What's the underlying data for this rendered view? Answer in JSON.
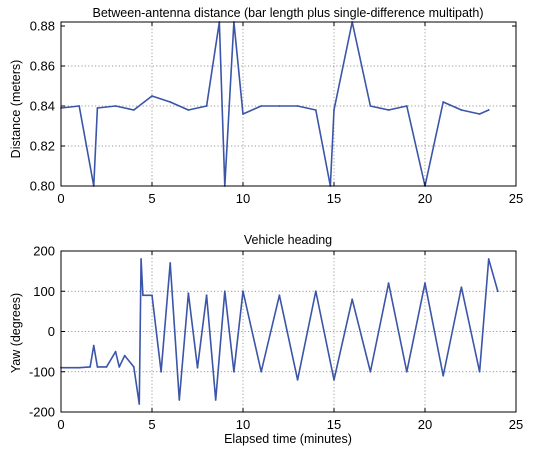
{
  "chart_data": [
    {
      "type": "line",
      "title": "Between-antenna distance (bar length plus single-difference multipath)",
      "xlabel": "",
      "ylabel": "Distance (meters)",
      "xlim": [
        0,
        25
      ],
      "ylim": [
        0.8,
        0.882
      ],
      "xticks": [
        "0",
        "5",
        "10",
        "15",
        "20",
        "25"
      ],
      "yticks": [
        "0.80",
        "0.82",
        "0.84",
        "0.86",
        "0.88"
      ],
      "grid": true,
      "line_color": "#3b55a8",
      "series": [
        {
          "name": "",
          "x": [
            0,
            1,
            1.8,
            2,
            3,
            4,
            5,
            6,
            7,
            8,
            8.7,
            9,
            9.5,
            10,
            11,
            12,
            13,
            14,
            14.8,
            15,
            16,
            17,
            18,
            19,
            20,
            21,
            22,
            23,
            23.5
          ],
          "y": [
            0.839,
            0.84,
            0.8,
            0.839,
            0.84,
            0.838,
            0.845,
            0.842,
            0.838,
            0.84,
            0.882,
            0.8,
            0.882,
            0.836,
            0.84,
            0.84,
            0.84,
            0.838,
            0.8,
            0.838,
            0.882,
            0.84,
            0.838,
            0.84,
            0.8,
            0.842,
            0.838,
            0.836,
            0.838
          ]
        }
      ]
    },
    {
      "type": "line",
      "title": "Vehicle heading",
      "xlabel": "Elapsed time (minutes)",
      "ylabel": "Yaw (degrees)",
      "xlim": [
        0,
        25
      ],
      "ylim": [
        -200,
        200
      ],
      "xticks": [
        "0",
        "5",
        "10",
        "15",
        "20",
        "25"
      ],
      "yticks": [
        "-200",
        "-100",
        "0",
        "100",
        "200"
      ],
      "grid": true,
      "line_color": "#3b55a8",
      "series": [
        {
          "name": "",
          "x": [
            0,
            1,
            1.6,
            1.8,
            2,
            2.5,
            3,
            3.2,
            3.5,
            4,
            4.3,
            4.4,
            4.5,
            5,
            5.5,
            6,
            6.5,
            7,
            7.5,
            8,
            8.5,
            9,
            9.5,
            10,
            11,
            12,
            13,
            14,
            15,
            16,
            17,
            18,
            19,
            20,
            21,
            22,
            23,
            23.5,
            24
          ],
          "y": [
            -90,
            -90,
            -88,
            -35,
            -88,
            -88,
            -50,
            -88,
            -60,
            -88,
            -180,
            180,
            90,
            90,
            -100,
            170,
            -170,
            95,
            -90,
            90,
            -170,
            100,
            -100,
            100,
            -100,
            90,
            -120,
            100,
            -120,
            80,
            -100,
            120,
            -100,
            120,
            -110,
            110,
            -100,
            180,
            100
          ]
        }
      ]
    }
  ]
}
